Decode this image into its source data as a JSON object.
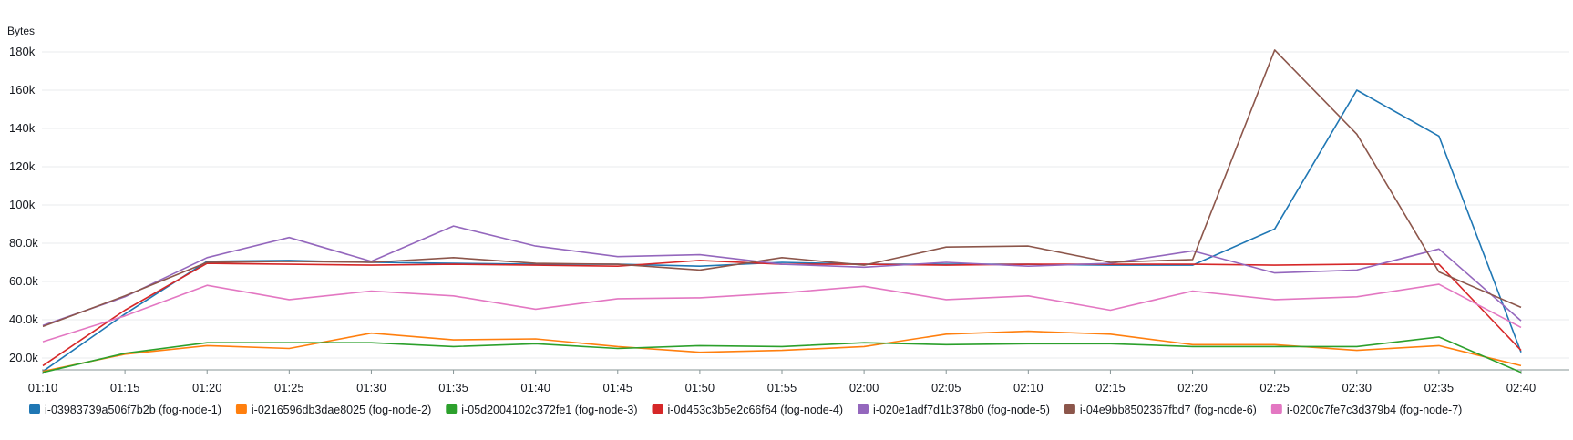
{
  "chart_data": {
    "type": "line",
    "ylabel": "Bytes",
    "ylim": [
      10000,
      190000
    ],
    "y_ticks": [
      {
        "value": 20000,
        "label": "20.0k"
      },
      {
        "value": 40000,
        "label": "40.0k"
      },
      {
        "value": 60000,
        "label": "60.0k"
      },
      {
        "value": 80000,
        "label": "80.0k"
      },
      {
        "value": 100000,
        "label": "100k"
      },
      {
        "value": 120000,
        "label": "120k"
      },
      {
        "value": 140000,
        "label": "140k"
      },
      {
        "value": 160000,
        "label": "160k"
      },
      {
        "value": 180000,
        "label": "180k"
      }
    ],
    "categories": [
      "01:10",
      "01:15",
      "01:20",
      "01:25",
      "01:30",
      "01:35",
      "01:40",
      "01:45",
      "01:50",
      "01:55",
      "02:00",
      "02:05",
      "02:10",
      "02:15",
      "02:20",
      "02:25",
      "02:30",
      "02:35",
      "02:40"
    ],
    "grid": true,
    "legend_position": "bottom",
    "series": [
      {
        "name": "i-03983739a506f7b2b (fog-node-1)",
        "color": "#1f77b4",
        "values": [
          13000,
          43000,
          70500,
          71000,
          70000,
          69500,
          69000,
          69000,
          68000,
          70000,
          69000,
          69000,
          69000,
          68500,
          68500,
          87500,
          160000,
          136000,
          23000
        ]
      },
      {
        "name": "i-0216596db3dae8025 (fog-node-2)",
        "color": "#ff7f0e",
        "values": [
          13000,
          22000,
          26500,
          25000,
          33000,
          29500,
          30000,
          26000,
          23000,
          24000,
          26000,
          32500,
          34000,
          32500,
          27000,
          27000,
          24000,
          26500,
          16000
        ]
      },
      {
        "name": "i-05d2004102c372fe1 (fog-node-3)",
        "color": "#2ca02c",
        "values": [
          12500,
          22500,
          28000,
          28000,
          28000,
          26000,
          27500,
          25000,
          26500,
          26000,
          28000,
          27000,
          27500,
          27500,
          26000,
          26000,
          26000,
          31000,
          12500
        ]
      },
      {
        "name": "i-0d453c3b5e2c66f64 (fog-node-4)",
        "color": "#d62728",
        "values": [
          16000,
          45000,
          69500,
          69000,
          68500,
          69000,
          68500,
          68000,
          71000,
          69000,
          69000,
          68500,
          69000,
          69000,
          69000,
          68500,
          69000,
          69000,
          24000
        ]
      },
      {
        "name": "i-020e1adf7d1b378b0 (fog-node-5)",
        "color": "#9467bd",
        "values": [
          37000,
          52000,
          72500,
          83000,
          70500,
          89000,
          78500,
          73000,
          74000,
          69000,
          67500,
          70000,
          68000,
          69500,
          76000,
          64500,
          66000,
          77000,
          39500
        ]
      },
      {
        "name": "i-04e9bb8502367fbd7 (fog-node-6)",
        "color": "#8c564b",
        "values": [
          36500,
          52500,
          70000,
          70500,
          70000,
          72500,
          69500,
          69000,
          66000,
          72500,
          68500,
          78000,
          78500,
          70000,
          71500,
          181000,
          137000,
          65000,
          46500
        ]
      },
      {
        "name": "i-0200c7fe7c3d379b4 (fog-node-7)",
        "color": "#e377c2",
        "values": [
          28500,
          42000,
          58000,
          50500,
          55000,
          52500,
          45500,
          51000,
          51500,
          54000,
          57500,
          50500,
          52500,
          45000,
          55000,
          50500,
          52000,
          58500,
          36000
        ]
      }
    ]
  }
}
